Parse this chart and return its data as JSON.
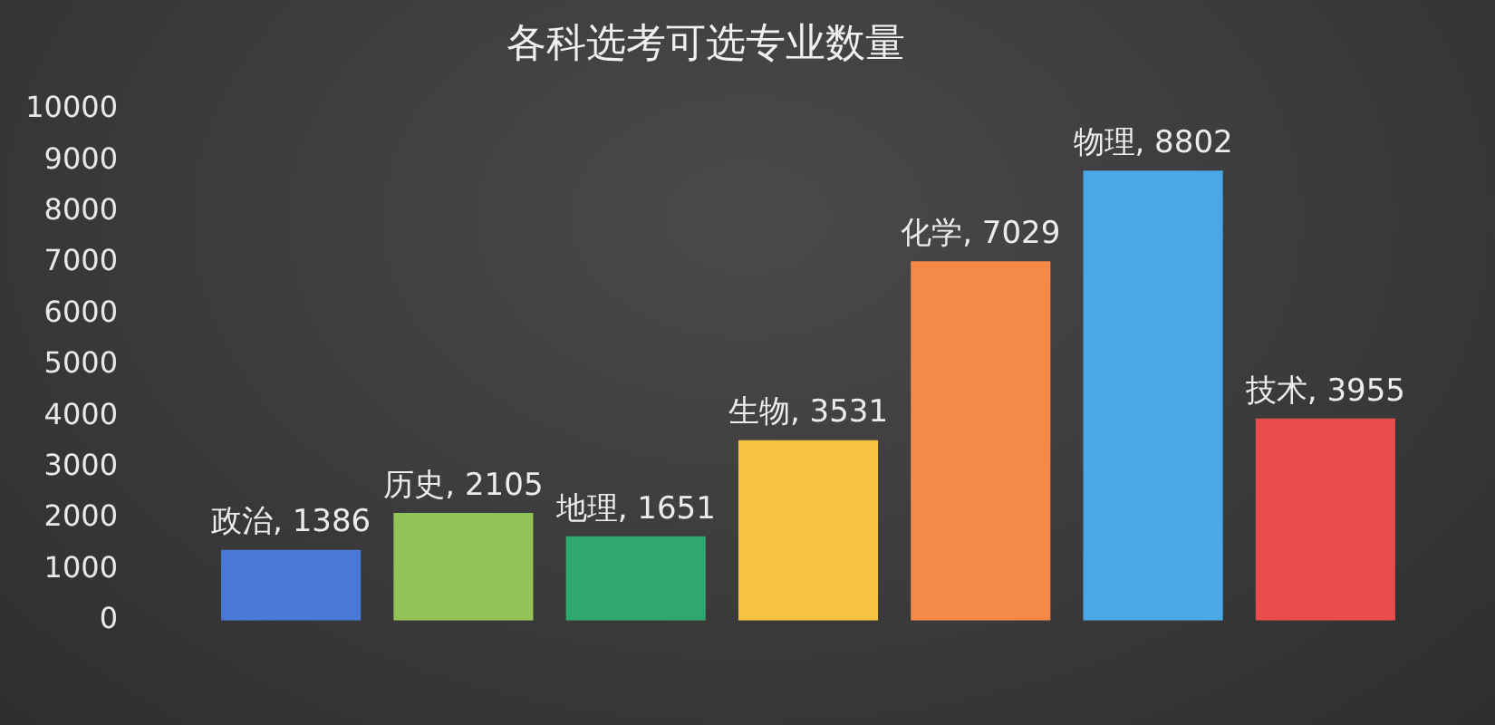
{
  "chart_data": {
    "type": "bar",
    "title": "各科选考可选专业数量",
    "categories": [
      null,
      null,
      null,
      null,
      null,
      null,
      null
    ],
    "values": [
      1386,
      2105,
      1651,
      3531,
      7029,
      8802,
      3955
    ],
    "value_labels": [
      "政治, 1386",
      "历史, 2105",
      "地理, 1651",
      "生物, 3531",
      "化学, 7029",
      "物理, 8802",
      "技术, 3955"
    ],
    "colors": [
      "#4a78d6",
      "#92c45a",
      "#2fa870",
      "#f5c242",
      "#f58a48",
      "#4aa8e8",
      "#e84c4c"
    ],
    "ylim": [
      0,
      10000
    ],
    "yticks": [
      0,
      1000,
      2000,
      3000,
      4000,
      5000,
      6000,
      7000,
      8000,
      9000,
      10000
    ],
    "tick_labels": "y",
    "legend": false,
    "grid": false
  }
}
